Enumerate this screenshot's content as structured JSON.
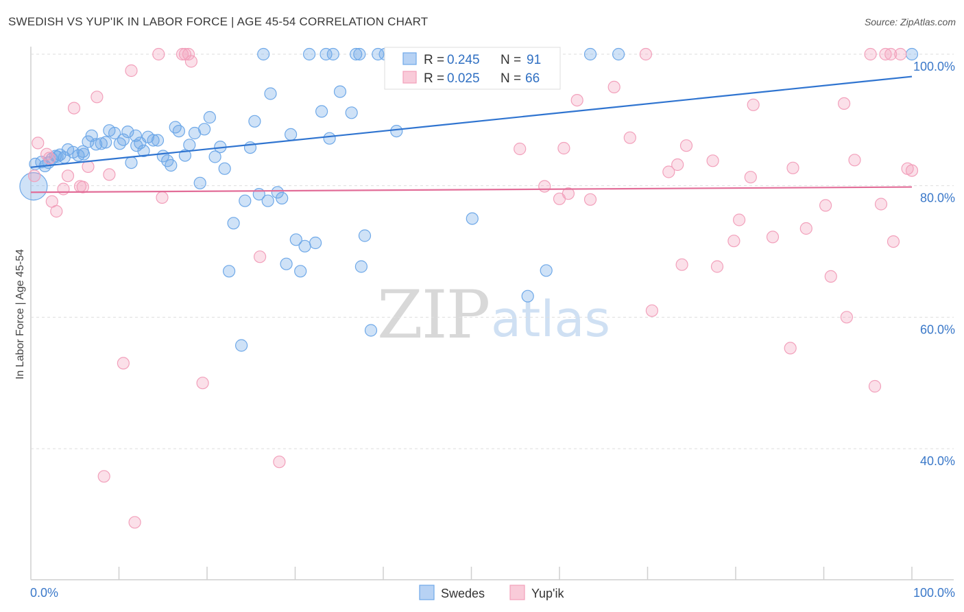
{
  "header": {
    "title": "SWEDISH VS YUP'IK IN LABOR FORCE | AGE 45-54 CORRELATION CHART",
    "source": "Source: ZipAtlas.com"
  },
  "watermark": {
    "zip": "ZIP",
    "atlas": "atlas"
  },
  "chart_data": {
    "type": "scatter",
    "title": "SWEDISH VS YUP'IK IN LABOR FORCE | AGE 45-54 CORRELATION CHART",
    "ylabel": "In Labor Force | Age 45-54",
    "xlabel": "",
    "xlim": [
      0,
      100
    ],
    "ylim": [
      20,
      102
    ],
    "x_tick_labels": {
      "left": "0.0%",
      "right": "100.0%"
    },
    "y_ticks": [
      {
        "value": 100,
        "label": "100.0%"
      },
      {
        "value": 80,
        "label": "80.0%"
      },
      {
        "value": 60,
        "label": "60.0%"
      },
      {
        "value": 40,
        "label": "40.0%"
      }
    ],
    "grid": "dashed horizontal",
    "legend_position": "top-center",
    "series": [
      {
        "name": "Swedes",
        "color": "#6ea8e8",
        "line_color": "#2f74d0",
        "R": "0.245",
        "N": "91",
        "trend": {
          "x": [
            0,
            100
          ],
          "y": [
            82.8,
            96.6
          ]
        },
        "points": [
          [
            0.3,
            79.9
          ],
          [
            1.2,
            83.6
          ],
          [
            1.6,
            83.0
          ],
          [
            2.0,
            83.5
          ],
          [
            2.4,
            84.1
          ],
          [
            3.0,
            84.4
          ],
          [
            3.3,
            84.7
          ],
          [
            3.8,
            84.3
          ],
          [
            4.2,
            85.5
          ],
          [
            4.8,
            85.1
          ],
          [
            5.4,
            84.6
          ],
          [
            5.9,
            85.2
          ],
          [
            6.5,
            86.7
          ],
          [
            6.9,
            87.6
          ],
          [
            7.4,
            86.3
          ],
          [
            8.0,
            86.4
          ],
          [
            8.5,
            86.6
          ],
          [
            8.9,
            88.4
          ],
          [
            9.5,
            88.0
          ],
          [
            10.1,
            86.4
          ],
          [
            10.5,
            87.0
          ],
          [
            11.0,
            88.2
          ],
          [
            11.4,
            83.5
          ],
          [
            11.9,
            87.6
          ],
          [
            12.4,
            86.5
          ],
          [
            12.8,
            85.3
          ],
          [
            13.3,
            87.4
          ],
          [
            13.9,
            86.9
          ],
          [
            14.4,
            86.9
          ],
          [
            15.0,
            84.5
          ],
          [
            15.5,
            83.8
          ],
          [
            15.9,
            83.1
          ],
          [
            16.4,
            88.9
          ],
          [
            16.8,
            88.3
          ],
          [
            17.5,
            84.6
          ],
          [
            18.0,
            86.2
          ],
          [
            18.6,
            88.0
          ],
          [
            19.2,
            80.4
          ],
          [
            19.7,
            88.6
          ],
          [
            20.3,
            90.4
          ],
          [
            20.9,
            84.4
          ],
          [
            21.5,
            85.9
          ],
          [
            22.0,
            82.6
          ],
          [
            22.5,
            67.0
          ],
          [
            23.0,
            74.3
          ],
          [
            23.9,
            55.7
          ],
          [
            24.3,
            77.7
          ],
          [
            24.9,
            85.8
          ],
          [
            25.4,
            89.8
          ],
          [
            25.9,
            78.7
          ],
          [
            26.4,
            100.0
          ],
          [
            26.9,
            77.7
          ],
          [
            27.2,
            94.0
          ],
          [
            28.0,
            79.0
          ],
          [
            28.5,
            78.1
          ],
          [
            29.0,
            68.1
          ],
          [
            29.5,
            87.8
          ],
          [
            30.1,
            71.8
          ],
          [
            30.6,
            67.0
          ],
          [
            31.1,
            70.8
          ],
          [
            31.6,
            100.0
          ],
          [
            32.3,
            71.3
          ],
          [
            33.0,
            91.3
          ],
          [
            33.5,
            100.0
          ],
          [
            33.9,
            87.2
          ],
          [
            34.3,
            100.0
          ],
          [
            35.1,
            94.3
          ],
          [
            36.4,
            91.1
          ],
          [
            36.9,
            100.0
          ],
          [
            37.3,
            100.0
          ],
          [
            37.5,
            67.7
          ],
          [
            37.9,
            72.4
          ],
          [
            38.6,
            58.0
          ],
          [
            39.4,
            100.0
          ],
          [
            40.2,
            100.0
          ],
          [
            41.0,
            100.0
          ],
          [
            41.5,
            88.3
          ],
          [
            43.0,
            100.0
          ],
          [
            44.0,
            100.0
          ],
          [
            50.1,
            75.0
          ],
          [
            53.6,
            100.0
          ],
          [
            56.4,
            63.2
          ],
          [
            57.6,
            100.0
          ],
          [
            58.5,
            67.1
          ],
          [
            63.5,
            100.0
          ],
          [
            66.7,
            100.0
          ],
          [
            100.0,
            100.0
          ],
          [
            0.5,
            83.3
          ],
          [
            2.8,
            84.5
          ],
          [
            6.0,
            84.8
          ],
          [
            12.0,
            86.1
          ]
        ]
      },
      {
        "name": "Yup'ik",
        "color": "#f2a0bb",
        "line_color": "#e26d98",
        "R": "0.025",
        "N": "66",
        "trend": {
          "x": [
            0,
            100
          ],
          "y": [
            79.0,
            79.8
          ]
        },
        "points": [
          [
            0.4,
            81.5
          ],
          [
            0.8,
            86.5
          ],
          [
            1.8,
            84.8
          ],
          [
            2.1,
            84.2
          ],
          [
            2.4,
            77.6
          ],
          [
            2.9,
            76.1
          ],
          [
            3.7,
            79.5
          ],
          [
            4.2,
            81.5
          ],
          [
            4.9,
            91.8
          ],
          [
            5.6,
            79.9
          ],
          [
            5.9,
            79.8
          ],
          [
            6.5,
            82.9
          ],
          [
            7.5,
            93.5
          ],
          [
            8.3,
            35.8
          ],
          [
            8.9,
            81.7
          ],
          [
            10.5,
            53.0
          ],
          [
            11.4,
            97.5
          ],
          [
            11.8,
            28.8
          ],
          [
            14.5,
            100.0
          ],
          [
            14.9,
            78.2
          ],
          [
            17.2,
            100.0
          ],
          [
            17.5,
            100.0
          ],
          [
            17.9,
            100.0
          ],
          [
            18.2,
            98.9
          ],
          [
            19.5,
            50.0
          ],
          [
            26.0,
            69.2
          ],
          [
            28.2,
            38.0
          ],
          [
            55.5,
            85.6
          ],
          [
            58.3,
            79.9
          ],
          [
            60.0,
            78.0
          ],
          [
            60.5,
            85.7
          ],
          [
            61.0,
            78.8
          ],
          [
            62.0,
            93.0
          ],
          [
            63.5,
            77.9
          ],
          [
            66.2,
            95.0
          ],
          [
            68.0,
            87.3
          ],
          [
            69.8,
            100.0
          ],
          [
            70.5,
            61.0
          ],
          [
            72.4,
            82.1
          ],
          [
            73.4,
            83.2
          ],
          [
            73.9,
            68.0
          ],
          [
            74.4,
            86.1
          ],
          [
            77.4,
            83.8
          ],
          [
            77.9,
            67.7
          ],
          [
            79.8,
            71.6
          ],
          [
            80.4,
            74.8
          ],
          [
            81.7,
            81.3
          ],
          [
            82.0,
            92.3
          ],
          [
            84.2,
            72.2
          ],
          [
            86.2,
            55.3
          ],
          [
            86.5,
            82.7
          ],
          [
            88.0,
            73.5
          ],
          [
            90.2,
            77.0
          ],
          [
            90.8,
            66.2
          ],
          [
            92.3,
            92.5
          ],
          [
            92.6,
            60.0
          ],
          [
            93.5,
            83.9
          ],
          [
            95.3,
            100.0
          ],
          [
            95.8,
            49.5
          ],
          [
            96.5,
            77.2
          ],
          [
            97.0,
            100.0
          ],
          [
            97.6,
            100.0
          ],
          [
            97.9,
            71.5
          ],
          [
            98.7,
            100.0
          ],
          [
            99.5,
            82.6
          ],
          [
            100.0,
            82.3
          ]
        ]
      }
    ]
  },
  "legend": {
    "bottom": [
      {
        "label": "Swedes"
      },
      {
        "label": "Yup'ik"
      }
    ],
    "stats": [
      {
        "r_label": "R =",
        "r": "0.245",
        "n_label": "N =",
        "n": "91"
      },
      {
        "r_label": "R =",
        "r": "0.025",
        "n_label": "N =",
        "n": "66"
      }
    ]
  }
}
